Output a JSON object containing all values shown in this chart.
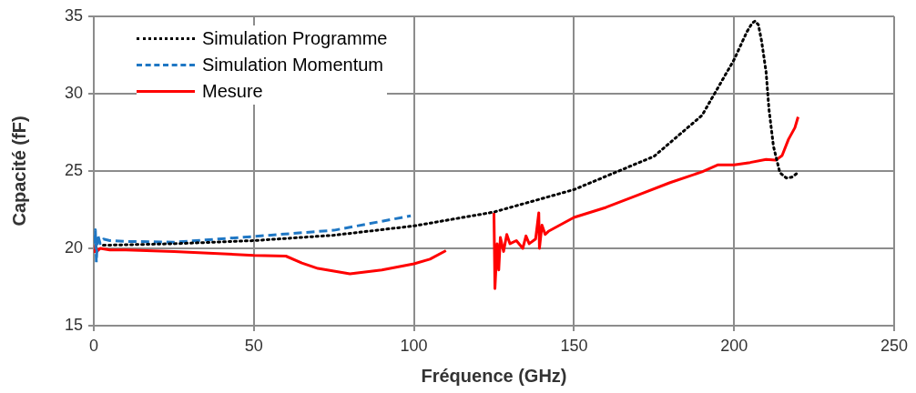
{
  "chart_data": {
    "type": "line",
    "xlabel": "Fréquence (GHz)",
    "ylabel": "Capacité (fF)",
    "xlim": [
      0,
      250
    ],
    "xticks": [
      0,
      50,
      100,
      150,
      200,
      250
    ],
    "ylim": [
      15,
      35
    ],
    "yticks": [
      15,
      20,
      25,
      30,
      35
    ],
    "grid": true,
    "legend": "top left",
    "marker": "none",
    "series": [
      {
        "name": "Simulation Programme",
        "color": "#000000",
        "line_style": "dotted",
        "x": [
          3,
          25,
          50,
          75,
          100,
          125,
          150,
          175,
          190,
          200,
          204,
          205.6,
          206.6,
          207.6,
          208.6,
          210,
          210.9,
          212.3,
          214.3,
          216.3,
          218,
          220
        ],
        "values": [
          20.2,
          20.3,
          20.5,
          20.85,
          21.45,
          22.35,
          23.8,
          25.95,
          28.6,
          32.2,
          34.0,
          34.55,
          34.7,
          34.45,
          33.4,
          31.4,
          29.0,
          26.6,
          24.9,
          24.55,
          24.6,
          24.9
        ]
      },
      {
        "name": "Simulation Momentum",
        "color": "#1f77c4",
        "line_style": "dashed",
        "x": [
          0.3,
          0.5,
          0.8,
          1.2,
          2,
          3,
          5,
          10,
          25,
          50,
          75,
          99
        ],
        "values": [
          20.3,
          21.2,
          19.1,
          20.9,
          20.3,
          20.6,
          20.5,
          20.45,
          20.4,
          20.77,
          21.17,
          22.1
        ]
      },
      {
        "name": "Mesure",
        "color": "#ff0000",
        "line_style": "solid",
        "x": [
          0.3,
          0.6,
          1,
          2,
          5,
          10,
          25,
          50,
          60,
          65,
          70,
          80,
          90,
          100,
          105,
          110,
          117,
          125,
          125.3,
          126,
          126.5,
          127,
          128,
          129,
          130,
          132,
          134,
          135,
          136,
          138,
          139,
          139.2,
          140,
          141,
          142,
          150,
          160,
          170,
          180,
          190,
          195,
          200,
          205,
          210,
          213,
          215,
          217,
          219,
          220
        ],
        "values": [
          19.7,
          20.2,
          19.8,
          20.0,
          19.9,
          19.9,
          19.8,
          19.55,
          19.5,
          19.05,
          18.7,
          18.35,
          18.6,
          19.0,
          19.3,
          19.85,
          null,
          22.3,
          17.4,
          20.3,
          18.6,
          20.7,
          19.8,
          20.9,
          20.3,
          20.5,
          20.0,
          20.8,
          20.3,
          20.6,
          22.3,
          20.0,
          21.5,
          20.9,
          21.1,
          22.0,
          22.65,
          23.45,
          24.25,
          24.95,
          25.4,
          25.4,
          25.55,
          25.75,
          25.7,
          26.0,
          27.05,
          27.8,
          28.5
        ]
      }
    ]
  }
}
